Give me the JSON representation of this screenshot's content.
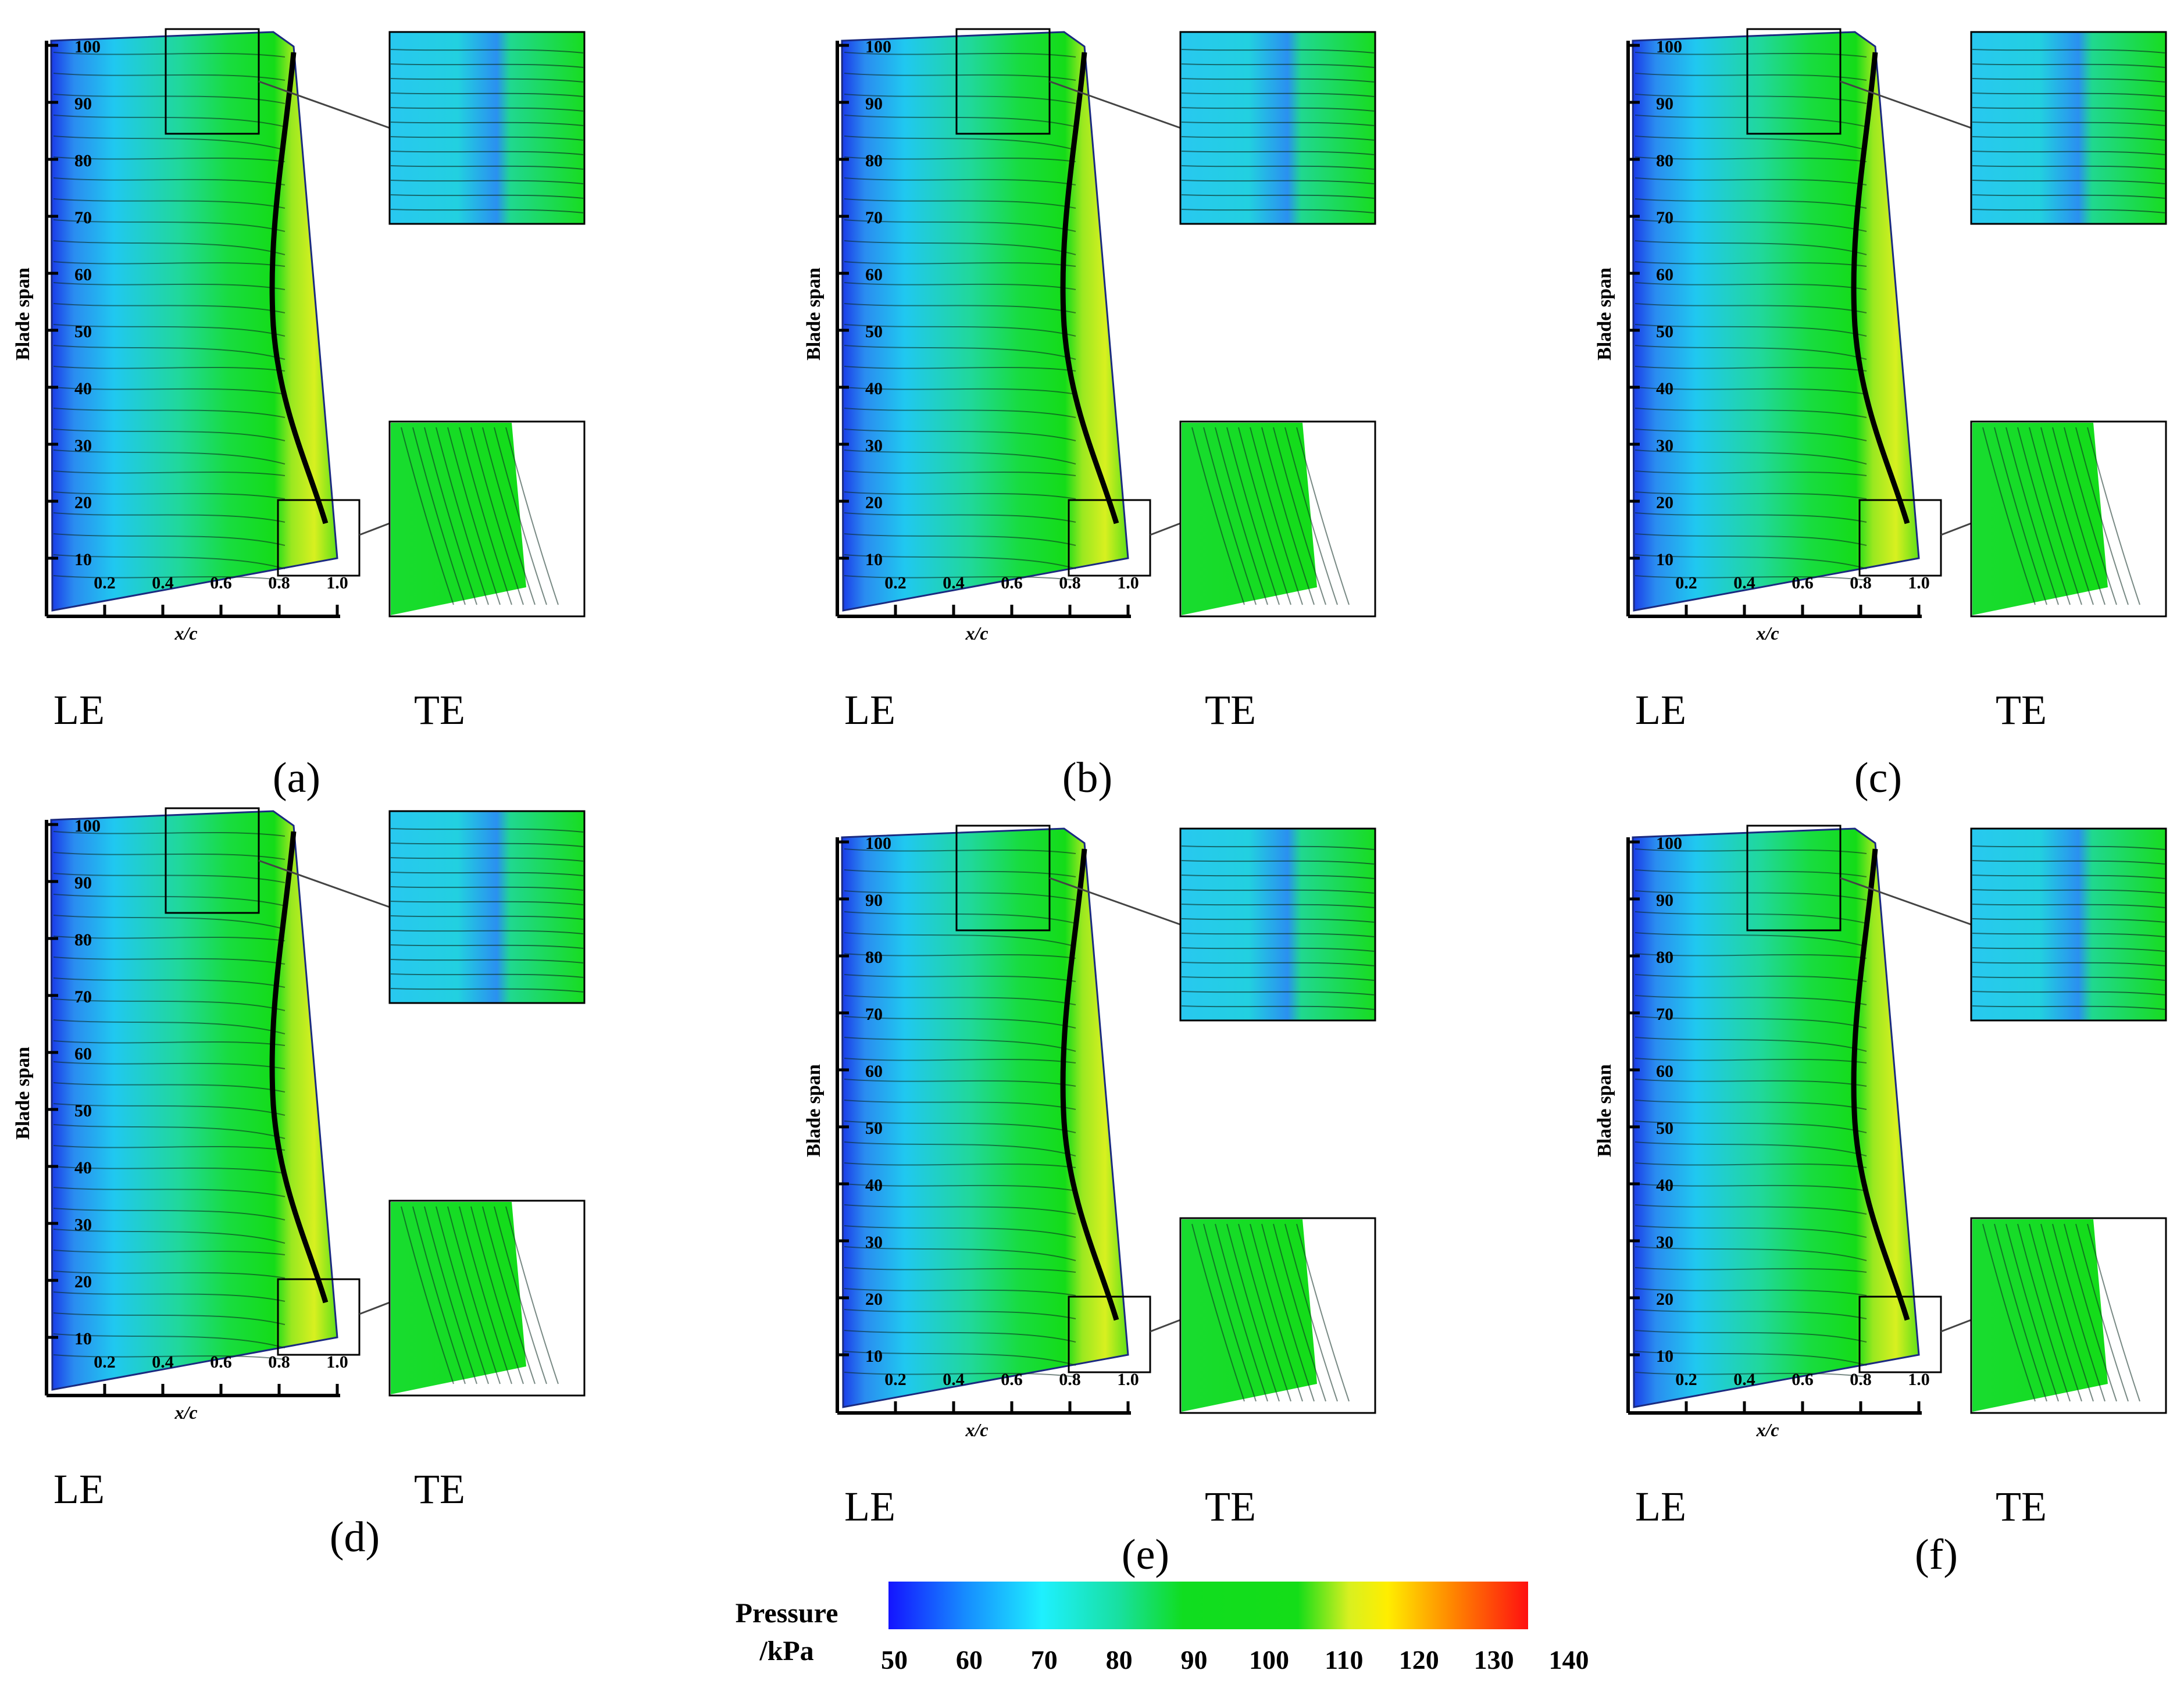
{
  "axes": {
    "y_label": "Blade span",
    "x_label": "x/c",
    "y_ticks": [
      "10",
      "20",
      "30",
      "40",
      "50",
      "60",
      "70",
      "80",
      "90",
      "100"
    ],
    "x_ticks": [
      "0.2",
      "0.4",
      "0.6",
      "0.8",
      "1.0"
    ]
  },
  "markers": {
    "leading_edge": "LE",
    "trailing_edge": "TE"
  },
  "panels": [
    {
      "label": "(a)"
    },
    {
      "label": "(b)"
    },
    {
      "label": "(c)"
    },
    {
      "label": "(d)"
    },
    {
      "label": "(e)"
    },
    {
      "label": "(f)"
    }
  ],
  "colorbar": {
    "title_line1": "Pressure",
    "title_line2": "/kPa",
    "ticks": [
      "50",
      "60",
      "70",
      "80",
      "90",
      "100",
      "110",
      "120",
      "130",
      "140"
    ],
    "min": 50,
    "max": 140,
    "colors": [
      "#1414ff",
      "#16a6ff",
      "#1ef0ff",
      "#18e07a",
      "#10dd10",
      "#14dd18",
      "#c8f020",
      "#ffee00",
      "#ff8800",
      "#ff1010"
    ]
  },
  "contour_colors": {
    "low": "#1a3ae8",
    "mid_low": "#20d4f0",
    "mid": "#18dc60",
    "high": "#14dc18",
    "upper": "#d8f020"
  }
}
